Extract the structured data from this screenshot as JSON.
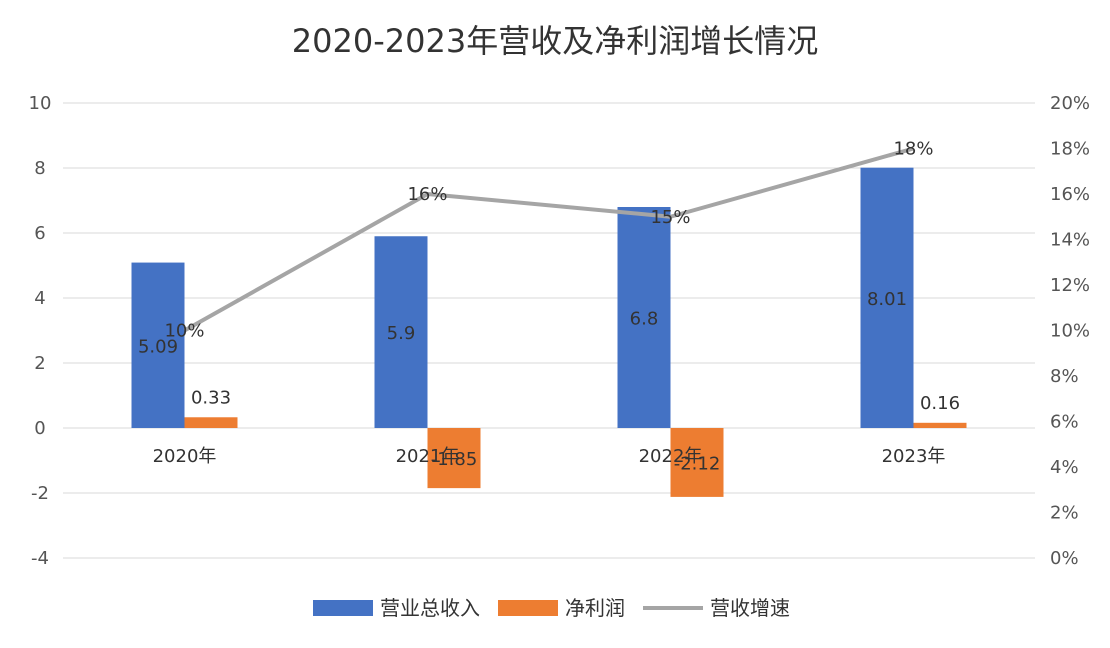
{
  "chart_data": {
    "type": "bar",
    "title": "2020-2023年营收及净利润增长情况",
    "categories": [
      "2020年",
      "2021年",
      "2022年",
      "2023年"
    ],
    "y_axis_left": {
      "range": [
        -4,
        10
      ],
      "ticks": [
        "10",
        "8",
        "6",
        "4",
        "2",
        "0",
        "-2",
        "-4"
      ]
    },
    "y_axis_right": {
      "range": [
        0,
        20
      ],
      "ticks": [
        "20%",
        "18%",
        "16%",
        "14%",
        "12%",
        "10%",
        "8%",
        "6%",
        "4%",
        "2%",
        "0%"
      ]
    },
    "grid": true,
    "legend_position": "bottom",
    "series": [
      {
        "name": "营业总收入",
        "type": "bar",
        "axis": "left",
        "color": "#4472C4",
        "values": [
          5.09,
          5.9,
          6.8,
          8.01
        ],
        "labels": [
          "5.09",
          "5.9",
          "6.8",
          "8.01"
        ]
      },
      {
        "name": "净利润",
        "type": "bar",
        "axis": "left",
        "color": "#ED7D31",
        "values": [
          0.33,
          -1.85,
          -2.12,
          0.16
        ],
        "labels": [
          "0.33",
          "-1.85",
          "-2.12",
          "0.16"
        ]
      },
      {
        "name": "营收增速",
        "type": "line",
        "axis": "right",
        "color": "#A5A5A5",
        "values": [
          10,
          16,
          15,
          18
        ],
        "labels": [
          "10%",
          "16%",
          "15%",
          "18%"
        ]
      }
    ]
  }
}
